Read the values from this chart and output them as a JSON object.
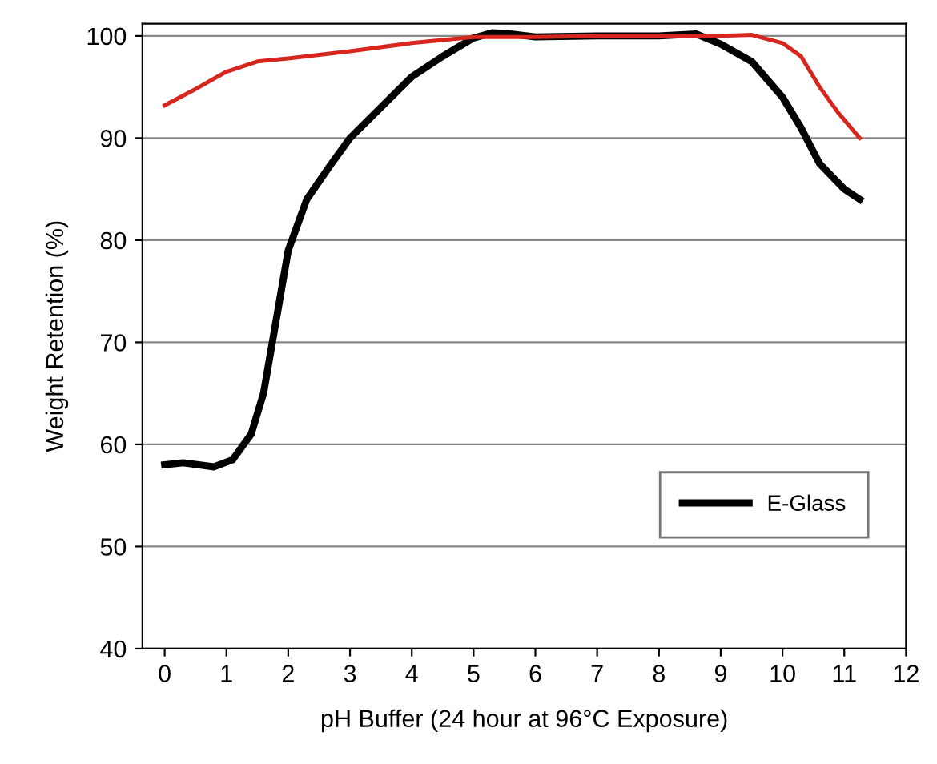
{
  "chart_data": {
    "type": "line",
    "xlabel": "pH Buffer (24 hour at 96°C Exposure)",
    "ylabel": "Weight Retention (%)",
    "series": [
      {
        "name": "E-Glass",
        "color": "#000000",
        "x": [
          0,
          0.3,
          0.8,
          1.1,
          1.4,
          1.6,
          1.8,
          2.0,
          2.3,
          2.7,
          3.0,
          3.5,
          4,
          4.5,
          5,
          5.3,
          5.6,
          6,
          7,
          8,
          8.6,
          9,
          9.5,
          10,
          10.3,
          10.6,
          11,
          11.25
        ],
        "values": [
          58,
          58.2,
          57.8,
          58.5,
          61,
          65,
          72,
          79,
          84,
          87.5,
          90,
          93,
          96,
          98,
          99.8,
          100.3,
          100.2,
          99.9,
          100,
          100,
          100.2,
          99.2,
          97.5,
          94,
          91,
          87.5,
          85,
          84
        ]
      },
      {
        "color": "#d7261e",
        "x": [
          0,
          0.5,
          1,
          1.5,
          2,
          3,
          4,
          5,
          6,
          7,
          8,
          9,
          9.5,
          10,
          10.3,
          10.6,
          10.9,
          11.25
        ],
        "values": [
          93.2,
          94.8,
          96.5,
          97.5,
          97.8,
          98.5,
          99.3,
          99.9,
          99.9,
          100,
          100,
          100,
          100.1,
          99.3,
          98,
          95,
          92.5,
          90
        ]
      }
    ],
    "xlim": [
      -0.36,
      12
    ],
    "xticks": [
      0,
      1,
      2,
      3,
      4,
      5,
      6,
      7,
      8,
      9,
      10,
      11,
      12
    ],
    "ylim": [
      40,
      101.2
    ],
    "yticks": [
      40,
      50,
      60,
      70,
      80,
      90,
      100
    ],
    "grid": "y",
    "legend": "bottom right",
    "line_style": "solid",
    "marker": "none"
  }
}
